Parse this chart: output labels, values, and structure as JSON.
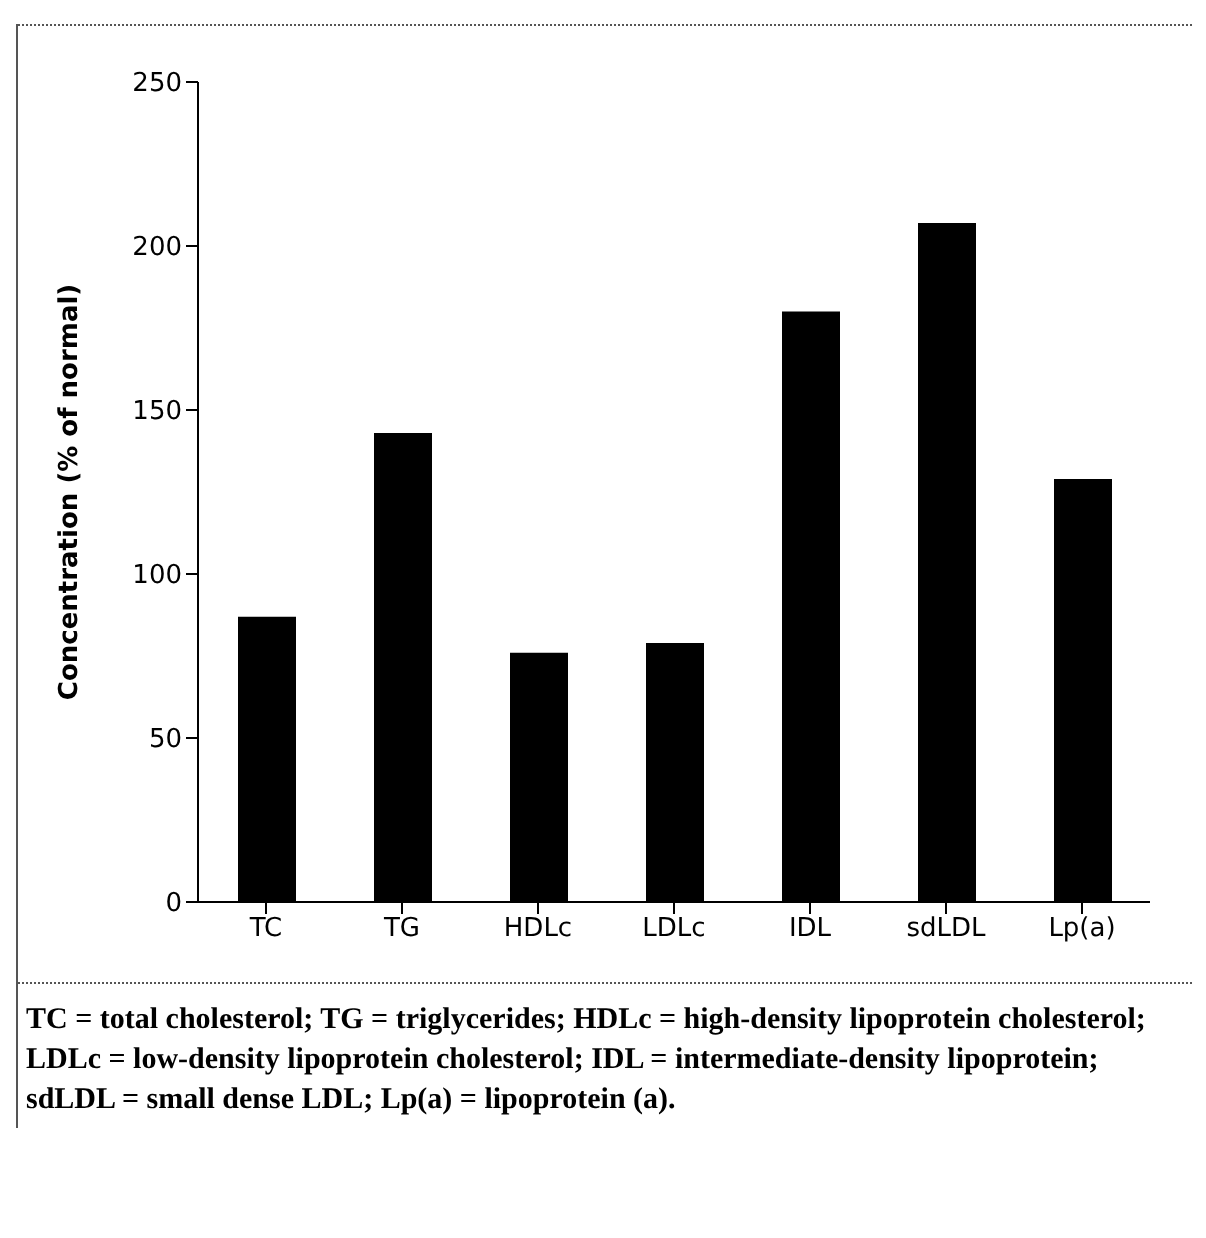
{
  "chart_data": {
    "type": "bar",
    "ylabel": "Concentration (% of normal)",
    "categories": [
      "TC",
      "TG",
      "HDLc",
      "LDLc",
      "IDL",
      "sdLDL",
      "Lp(a)"
    ],
    "values": [
      87,
      143,
      76,
      79,
      180,
      207,
      129
    ],
    "color": "#000000",
    "ylim": [
      0,
      250
    ],
    "yticks": [
      0,
      50,
      100,
      150,
      200,
      250
    ],
    "grid": false,
    "legend": false,
    "annotations": [
      "TC = total cholesterol; TG = triglycerides; HDLc = high-density lipoprotein cholesterol; LDLc = low-density lipoprotein cholesterol; IDL = intermediate-density lipoprotein; sdLDL = small dense LDL; Lp(a) = lipoprotein (a)."
    ]
  }
}
